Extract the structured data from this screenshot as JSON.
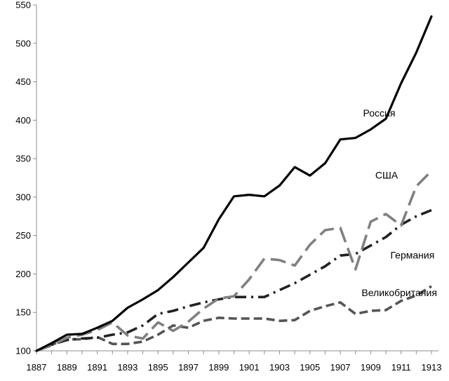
{
  "chart_data": {
    "type": "line",
    "title": "",
    "xlabel": "",
    "ylabel": "",
    "x": [
      1887,
      1888,
      1889,
      1890,
      1891,
      1892,
      1893,
      1894,
      1895,
      1896,
      1897,
      1898,
      1899,
      1900,
      1901,
      1902,
      1903,
      1904,
      1905,
      1906,
      1907,
      1908,
      1909,
      1910,
      1911,
      1912,
      1913
    ],
    "x_tick_labels": [
      "1887",
      "1889",
      "1891",
      "1893",
      "1895",
      "1897",
      "1899",
      "1901",
      "1903",
      "1905",
      "1907",
      "1909",
      "1911",
      "1913"
    ],
    "x_tick_values": [
      1887,
      1889,
      1891,
      1893,
      1895,
      1897,
      1899,
      1901,
      1903,
      1905,
      1907,
      1909,
      1911,
      1913
    ],
    "ylim": [
      100,
      550
    ],
    "y_ticks": [
      100,
      150,
      200,
      250,
      300,
      350,
      400,
      450,
      500,
      550
    ],
    "y_tick_labels": [
      "100",
      "150",
      "200",
      "250",
      "300",
      "350",
      "400",
      "450",
      "500",
      "550"
    ],
    "grid": false,
    "series": [
      {
        "name": "Россия",
        "color": "#000000",
        "dash": "solid",
        "label_at": [
          1908.5,
          405
        ],
        "values": [
          100,
          110,
          121,
          122,
          130,
          139,
          156,
          167,
          179,
          196,
          215,
          234,
          271,
          301,
          303,
          301,
          315,
          339,
          328,
          344,
          375,
          377,
          388,
          402,
          448,
          488,
          535
        ]
      },
      {
        "name": "США",
        "color": "#808080",
        "dash": "long",
        "label_at": [
          1909.3,
          324
        ],
        "values": [
          100,
          107,
          117,
          121,
          127,
          137,
          120,
          116,
          137,
          126,
          138,
          155,
          168,
          171,
          193,
          220,
          218,
          211,
          238,
          257,
          260,
          206,
          268,
          278,
          263,
          314,
          334
        ]
      },
      {
        "name": "Германия",
        "color": "#222222",
        "dash": "dashdot",
        "label_at": [
          1910.3,
          220
        ],
        "values": [
          100,
          108,
          114,
          116,
          117,
          121,
          124,
          133,
          148,
          152,
          158,
          163,
          167,
          170,
          170,
          170,
          179,
          188,
          199,
          210,
          224,
          226,
          237,
          248,
          264,
          275,
          283
        ]
      },
      {
        "name": "Великобритания",
        "color": "#555555",
        "dash": "medium",
        "label_at": [
          1908.4,
          171
        ],
        "values": [
          100,
          108,
          115,
          115,
          118,
          109,
          109,
          112,
          121,
          133,
          130,
          139,
          143,
          142,
          142,
          142,
          139,
          140,
          152,
          158,
          163,
          148,
          152,
          153,
          165,
          172,
          184
        ]
      }
    ]
  }
}
